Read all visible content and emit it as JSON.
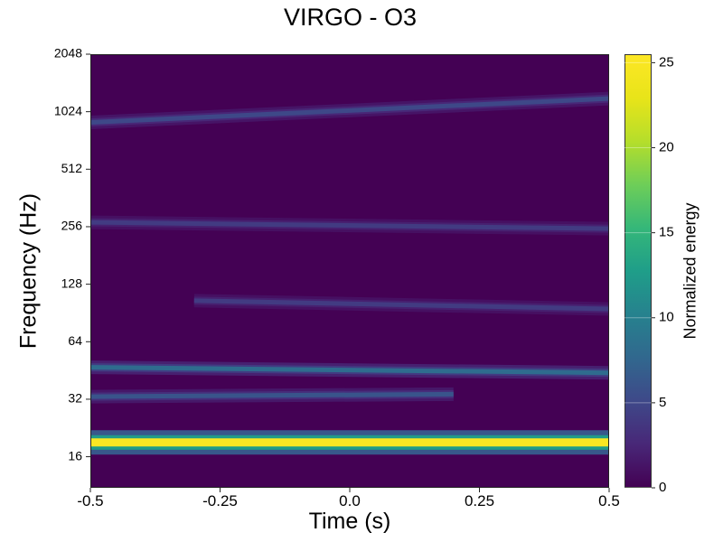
{
  "chart_data": {
    "type": "heatmap",
    "title": "VIRGO - O3",
    "xlabel": "Time (s)",
    "ylabel": "Frequency (Hz)",
    "colorbar_label": "Normalized energy",
    "colormap": "viridis",
    "xlim": [
      -0.5,
      0.5
    ],
    "ylim": [
      11,
      2048
    ],
    "yscale": "log2",
    "x_ticks": [
      "-0.5",
      "-0.25",
      "0.0",
      "0.25",
      "0.5"
    ],
    "x_tick_values": [
      -0.5,
      -0.25,
      0.0,
      0.25,
      0.5
    ],
    "y_ticks": [
      "16",
      "32",
      "64",
      "128",
      "256",
      "512",
      "1024",
      "2048"
    ],
    "y_tick_values": [
      16,
      32,
      64,
      128,
      256,
      512,
      1024,
      2048
    ],
    "colorbar_range": [
      0,
      25.5
    ],
    "colorbar_ticks": [
      "0",
      "5",
      "10",
      "15",
      "20",
      "25"
    ],
    "colorbar_tick_values": [
      0,
      5,
      10,
      15,
      20,
      25
    ],
    "features": [
      {
        "t_start": -0.5,
        "t_end": 0.5,
        "f_start": 19,
        "f_end": 19,
        "energy": 25
      },
      {
        "t_start": -0.5,
        "t_end": 0.5,
        "f_start": 47,
        "f_end": 44,
        "energy": 8
      },
      {
        "t_start": -0.5,
        "t_end": 0.2,
        "f_start": 33,
        "f_end": 34,
        "energy": 6
      },
      {
        "t_start": -0.3,
        "t_end": 0.5,
        "f_start": 105,
        "f_end": 95,
        "energy": 4
      },
      {
        "t_start": -0.5,
        "t_end": 0.5,
        "f_start": 270,
        "f_end": 250,
        "energy": 4
      },
      {
        "t_start": -0.5,
        "t_end": 0.5,
        "f_start": 900,
        "f_end": 1200,
        "energy": 5
      }
    ]
  }
}
